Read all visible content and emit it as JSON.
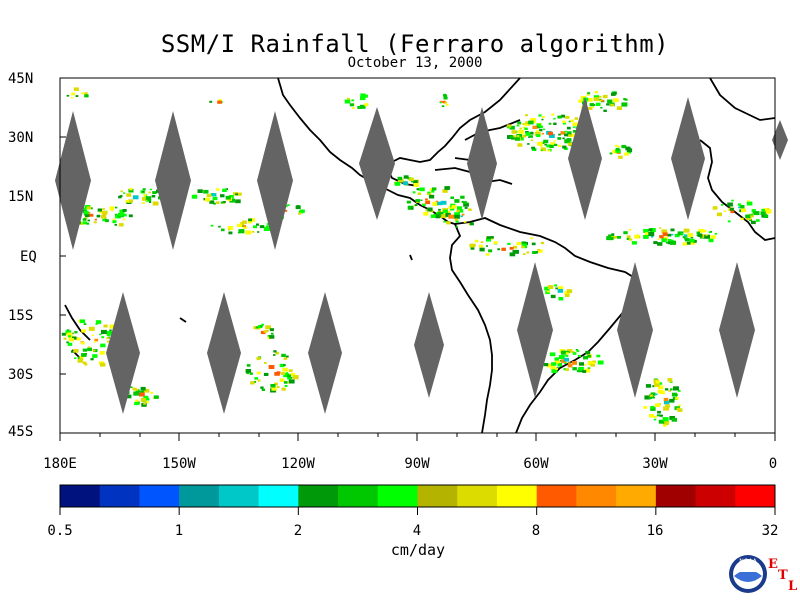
{
  "title": "SSM/I Rainfall (Ferraro algorithm)",
  "date": "October 13, 2000",
  "lat_labels": [
    "45N",
    "30N",
    "15N",
    "EQ",
    "15S",
    "30S",
    "45S"
  ],
  "lon_labels": [
    "180E",
    "150W",
    "120W",
    "90W",
    "60W",
    "30W",
    "0"
  ],
  "colorbar": {
    "colors": [
      "#00127e",
      "#0033c0",
      "#0055ff",
      "#00999b",
      "#00c8c8",
      "#00ffff",
      "#00990a",
      "#00c800",
      "#00ff00",
      "#b4b400",
      "#dcdc00",
      "#ffff00",
      "#ff5a00",
      "#ff8800",
      "#ffaa00",
      "#a00000",
      "#cc0000",
      "#ff0000"
    ],
    "tick_labels": [
      "0.5",
      "1",
      "2",
      "4",
      "8",
      "16",
      "32"
    ],
    "units": "cm/day"
  },
  "logo": {
    "name": "noaa-logo",
    "text": "NOAA",
    "etl_letters": [
      "E",
      "T",
      "L"
    ]
  }
}
